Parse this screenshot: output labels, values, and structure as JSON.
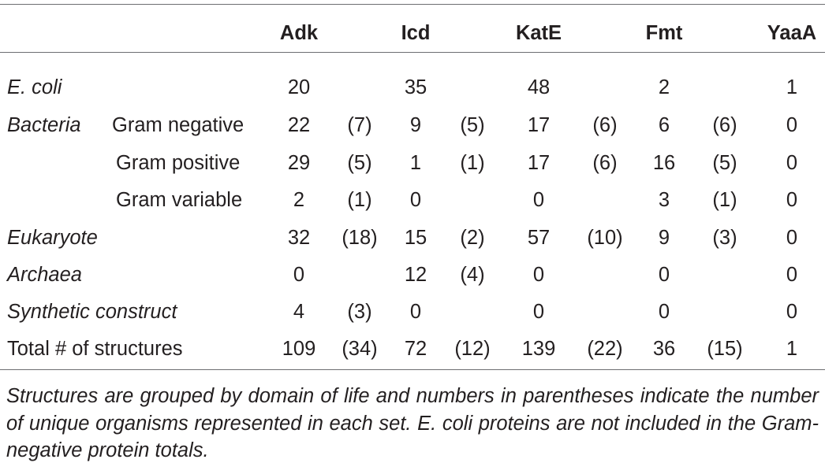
{
  "table": {
    "columns": [
      "",
      "",
      "Adk",
      "",
      "Icd",
      "",
      "KatE",
      "",
      "Fmt",
      "",
      "YaaA"
    ],
    "headers": {
      "adk": "Adk",
      "icd": "Icd",
      "kate": "KatE",
      "fmt": "Fmt",
      "yaaa": "YaaA"
    },
    "rows": [
      {
        "group": "E. coli",
        "sub": "",
        "adk": "20",
        "adk_p": "",
        "icd": "35",
        "icd_p": "",
        "kate": "48",
        "kate_p": "",
        "fmt": "2",
        "fmt_p": "",
        "yaaa": "1"
      },
      {
        "group": "Bacteria",
        "sub": "Gram negative",
        "adk": "22",
        "adk_p": "(7)",
        "icd": "9",
        "icd_p": "(5)",
        "kate": "17",
        "kate_p": "(6)",
        "fmt": "6",
        "fmt_p": "(6)",
        "yaaa": "0"
      },
      {
        "group": "",
        "sub": "Gram positive",
        "adk": "29",
        "adk_p": "(5)",
        "icd": "1",
        "icd_p": "(1)",
        "kate": "17",
        "kate_p": "(6)",
        "fmt": "16",
        "fmt_p": "(5)",
        "yaaa": "0"
      },
      {
        "group": "",
        "sub": "Gram variable",
        "adk": "2",
        "adk_p": "(1)",
        "icd": "0",
        "icd_p": "",
        "kate": "0",
        "kate_p": "",
        "fmt": "3",
        "fmt_p": "(1)",
        "yaaa": "0"
      },
      {
        "group": "Eukaryote",
        "sub": "",
        "adk": "32",
        "adk_p": "(18)",
        "icd": "15",
        "icd_p": "(2)",
        "kate": "57",
        "kate_p": "(10)",
        "fmt": "9",
        "fmt_p": "(3)",
        "yaaa": "0"
      },
      {
        "group": "Archaea",
        "sub": "",
        "adk": "0",
        "adk_p": "",
        "icd": "12",
        "icd_p": "(4)",
        "kate": "0",
        "kate_p": "",
        "fmt": "0",
        "fmt_p": "",
        "yaaa": "0"
      },
      {
        "group": "Synthetic construct",
        "sub": "",
        "adk": "4",
        "adk_p": "(3)",
        "icd": "0",
        "icd_p": "",
        "kate": "0",
        "kate_p": "",
        "fmt": "0",
        "fmt_p": "",
        "yaaa": "0"
      },
      {
        "group": "Total # of structures",
        "sub": "",
        "adk": "109",
        "adk_p": "(34)",
        "icd": "72",
        "icd_p": "(12)",
        "kate": "139",
        "kate_p": "(22)",
        "fmt": "36",
        "fmt_p": "(15)",
        "yaaa": "1"
      }
    ]
  },
  "footnote": "Structures are grouped by domain of life and numbers in parentheses indicate the number of unique organisms represented in each set. E. coli proteins are not included in the Gram-negative protein totals."
}
